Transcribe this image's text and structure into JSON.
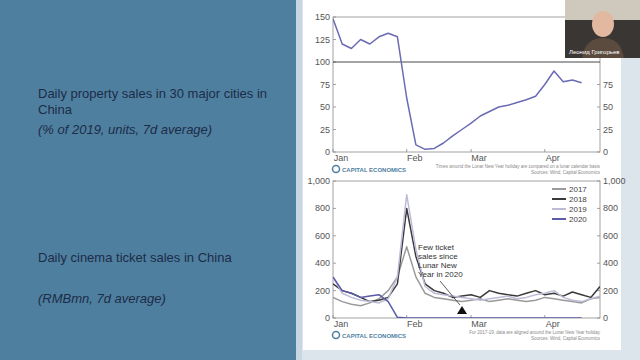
{
  "slide": {
    "speaker": "Леонид Григорьев"
  },
  "chart_data": [
    {
      "type": "line",
      "title": "Daily property sales in 30 major cities in China",
      "subtitle": "(% of 2019, units, 7d average)",
      "categories": [
        "Jan",
        null,
        null,
        null,
        null,
        null,
        null,
        null,
        "Feb",
        null,
        null,
        null,
        null,
        null,
        null,
        "Mar",
        null,
        null,
        null,
        null,
        null,
        null,
        null,
        "Apr",
        null,
        null,
        null,
        null,
        null,
        null
      ],
      "values": [
        148,
        120,
        115,
        125,
        120,
        128,
        132,
        128,
        60,
        8,
        3,
        4,
        10,
        18,
        25,
        32,
        40,
        45,
        50,
        52,
        55,
        58,
        62,
        75,
        90,
        78,
        80,
        77,
        null,
        null
      ],
      "color": "#6b6bb5",
      "ylim": [
        0,
        150
      ],
      "yticks": [
        0,
        25,
        50,
        75,
        100,
        125,
        150
      ],
      "y2lim": [
        0,
        150
      ],
      "y2ticks": [
        0,
        25,
        50,
        75
      ],
      "reference_value": 100,
      "grid": false,
      "logo": "CAPITAL ECONOMICS",
      "note": "Times around the Lunar New Year holiday are compared on a lunar calendar basis",
      "source": "Sources: Wind, Capital Economics"
    },
    {
      "type": "line",
      "title": "Daily cinema ticket sales in China",
      "subtitle": "(RMBmn, 7d average)",
      "categories": [
        "Jan",
        null,
        null,
        null,
        null,
        null,
        null,
        null,
        "Feb",
        null,
        null,
        null,
        null,
        null,
        null,
        "Mar",
        null,
        null,
        null,
        null,
        null,
        null,
        null,
        "Apr",
        null,
        null,
        null,
        null,
        null,
        null
      ],
      "series": [
        {
          "name": "2017",
          "color": "#9a9a9a",
          "values": [
            150,
            120,
            100,
            90,
            110,
            140,
            200,
            300,
            520,
            300,
            180,
            150,
            140,
            130,
            120,
            130,
            140,
            120,
            130,
            140,
            130,
            120,
            130,
            150,
            140,
            130,
            120,
            110,
            140,
            150
          ]
        },
        {
          "name": "2018",
          "color": "#3a3a3a",
          "values": [
            250,
            200,
            180,
            150,
            120,
            130,
            150,
            250,
            800,
            450,
            250,
            200,
            180,
            150,
            160,
            170,
            150,
            200,
            180,
            170,
            160,
            180,
            200,
            170,
            180,
            160,
            190,
            170,
            150,
            230
          ]
        },
        {
          "name": "2019",
          "color": "#bcbcd8",
          "values": [
            300,
            180,
            150,
            130,
            120,
            110,
            140,
            300,
            900,
            500,
            230,
            180,
            170,
            160,
            150,
            140,
            130,
            140,
            150,
            160,
            140,
            150,
            170,
            180,
            200,
            150,
            130,
            120,
            140,
            160
          ]
        },
        {
          "name": "2020",
          "color": "#5b5ba8",
          "values": [
            300,
            200,
            180,
            150,
            160,
            170,
            120,
            5,
            0,
            0,
            0,
            0,
            0,
            0,
            0,
            0,
            0,
            0,
            0,
            0,
            0,
            0,
            0,
            0,
            0,
            0,
            0,
            0,
            null,
            null
          ]
        }
      ],
      "ylim": [
        0,
        1000
      ],
      "yticks": [
        0,
        200,
        400,
        600,
        800,
        {
          "value": 1000,
          "label": "1,000"
        }
      ],
      "y2lim": [
        0,
        1000
      ],
      "y2ticks": [
        0,
        200,
        400,
        600,
        800,
        {
          "value": 1000,
          "label": "1,000"
        }
      ],
      "legend": "top-right",
      "grid": false,
      "annotation": "Few ticket sales since Lunar New Year in 2020",
      "logo": "CAPITAL ECONOMICS",
      "note": "For 2017-19, data are aligned around the Lunar New Year holiday",
      "source": "Sources: Wind, Capital Economics"
    }
  ]
}
